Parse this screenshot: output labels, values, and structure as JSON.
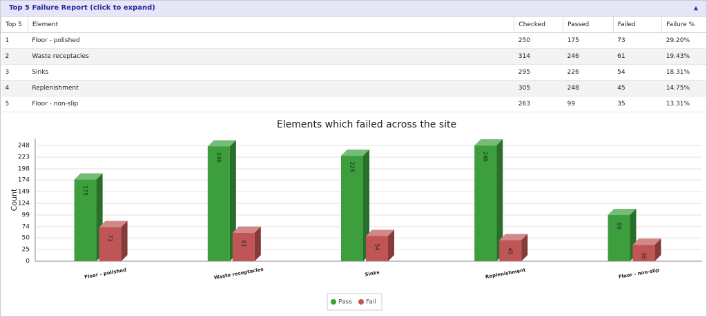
{
  "header": {
    "title": "Top 5 Failure Report (click to expand)"
  },
  "table": {
    "columns": [
      "Top 5",
      "Element",
      "Checked",
      "Passed",
      "Failed",
      "Failure %"
    ],
    "rows": [
      [
        1,
        "Floor - polished",
        250,
        175,
        73,
        "29.20%"
      ],
      [
        2,
        "Waste receptacles",
        314,
        246,
        61,
        "19.43%"
      ],
      [
        3,
        "Sinks",
        295,
        226,
        54,
        "18.31%"
      ],
      [
        4,
        "Replenishment",
        305,
        248,
        45,
        "14.75%"
      ],
      [
        5,
        "Floor - non-slip",
        263,
        99,
        35,
        "13.31%"
      ]
    ]
  },
  "chart_data": {
    "type": "bar",
    "title": "Elements which failed across the site",
    "y_label": "Count",
    "categories": [
      "Floor - polished",
      "Waste receptacles",
      "Sinks",
      "Replenishment",
      "Floor - non-slip"
    ],
    "series": [
      {
        "name": "Pass",
        "color": "#3c9e3c",
        "values": [
          175,
          246,
          226,
          248,
          99
        ]
      },
      {
        "name": "Fail",
        "color": "#c05555",
        "values": [
          73,
          61,
          54,
          45,
          35
        ]
      }
    ],
    "ylim": [
      0,
      263
    ],
    "yticks": [
      0,
      25,
      50,
      74,
      99,
      124,
      149,
      174,
      198,
      223,
      248
    ],
    "grid": true
  }
}
